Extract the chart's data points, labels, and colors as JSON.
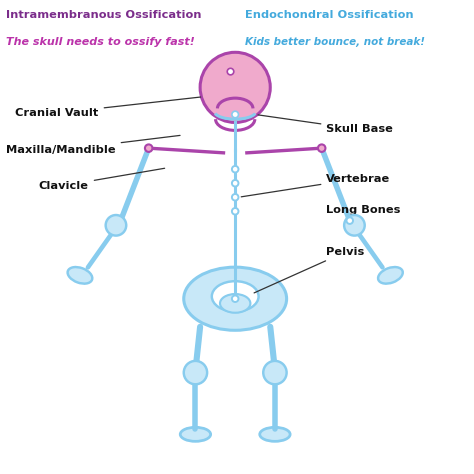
{
  "bg_color": "#ffffff",
  "left_title": "Intramembranous Ossification",
  "left_subtitle": "The skull needs to ossify fast!",
  "right_title": "Endochondral Ossification",
  "right_subtitle": "Kids better bounce, not break!",
  "left_title_color": "#7B2D8B",
  "left_subtitle_color": "#BB33AA",
  "right_title_color": "#44AADD",
  "right_subtitle_color": "#44AADD",
  "skeleton_blue": "#88CCEE",
  "skeleton_blue_fill": "#C8E8F8",
  "skeleton_purple": "#AA44AA",
  "skeleton_purple_fill": "#F0AACC",
  "label_color": "#111111"
}
